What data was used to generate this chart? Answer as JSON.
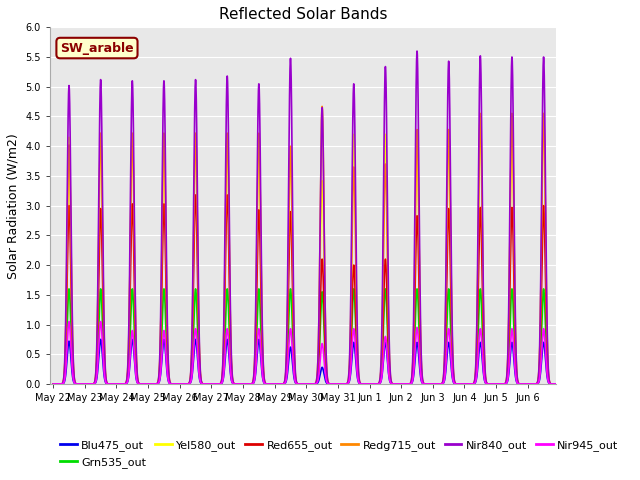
{
  "title": "Reflected Solar Bands",
  "ylabel": "Solar Radiation (W/m2)",
  "background_color": "#e8e8e8",
  "annotation_text": "SW_arable",
  "annotation_bg": "#ffffcc",
  "annotation_border": "#8b0000",
  "annotation_text_color": "#8b0000",
  "ylim": [
    0.0,
    6.0
  ],
  "yticks": [
    0.0,
    0.5,
    1.0,
    1.5,
    2.0,
    2.5,
    3.0,
    3.5,
    4.0,
    4.5,
    5.0,
    5.5,
    6.0
  ],
  "num_days": 16,
  "points_per_day": 288,
  "peak_sigma": 0.06,
  "series": [
    {
      "name": "Blu475_out",
      "color": "#0000ee",
      "lw": 1.2,
      "peak_heights": [
        0.72,
        0.75,
        0.75,
        0.75,
        0.75,
        0.75,
        0.75,
        0.62,
        0.28,
        0.7,
        0.7,
        0.7,
        0.7,
        0.7,
        0.7,
        0.7
      ]
    },
    {
      "name": "Grn535_out",
      "color": "#00dd00",
      "lw": 1.2,
      "peak_heights": [
        1.6,
        1.6,
        1.6,
        1.6,
        1.6,
        1.6,
        1.6,
        1.6,
        1.55,
        1.6,
        1.6,
        1.6,
        1.6,
        1.6,
        1.6,
        1.6
      ]
    },
    {
      "name": "Yel580_out",
      "color": "#ffff00",
      "lw": 1.2,
      "peak_heights": [
        4.15,
        4.2,
        4.2,
        4.2,
        4.2,
        4.2,
        4.2,
        3.92,
        3.42,
        4.2,
        4.2,
        4.2,
        4.2,
        4.55,
        4.55,
        4.55
      ]
    },
    {
      "name": "Red655_out",
      "color": "#dd0000",
      "lw": 1.2,
      "peak_heights": [
        3.0,
        2.95,
        3.03,
        3.03,
        3.18,
        3.18,
        2.93,
        2.9,
        2.1,
        2.0,
        2.1,
        2.83,
        2.95,
        2.97,
        2.97,
        3.0
      ]
    },
    {
      "name": "Redg715_out",
      "color": "#ff8800",
      "lw": 1.2,
      "peak_heights": [
        4.02,
        4.22,
        4.22,
        4.22,
        4.22,
        4.22,
        4.22,
        4.0,
        4.67,
        3.65,
        3.7,
        4.28,
        4.28,
        4.55,
        4.55,
        4.55
      ]
    },
    {
      "name": "Nir840_out",
      "color": "#9900cc",
      "lw": 1.2,
      "peak_heights": [
        5.02,
        5.12,
        5.1,
        5.1,
        5.12,
        5.18,
        5.05,
        5.48,
        4.65,
        5.05,
        5.34,
        5.6,
        5.43,
        5.52,
        5.5,
        5.5
      ]
    },
    {
      "name": "Nir945_out",
      "color": "#ff00ff",
      "lw": 1.2,
      "peak_heights": [
        1.05,
        1.05,
        0.9,
        0.9,
        0.93,
        0.93,
        0.93,
        0.93,
        0.68,
        0.93,
        0.8,
        0.95,
        0.93,
        0.93,
        0.93,
        0.93
      ]
    }
  ],
  "xtick_labels": [
    "May 22",
    "May 23",
    "May 24",
    "May 25",
    "May 26",
    "May 27",
    "May 28",
    "May 29",
    "May 30",
    "May 31",
    "Jun 1",
    "Jun 2",
    "Jun 3",
    "Jun 4",
    "Jun 5",
    "Jun 6"
  ],
  "legend_ncol": 6,
  "legend_fontsize": 8
}
